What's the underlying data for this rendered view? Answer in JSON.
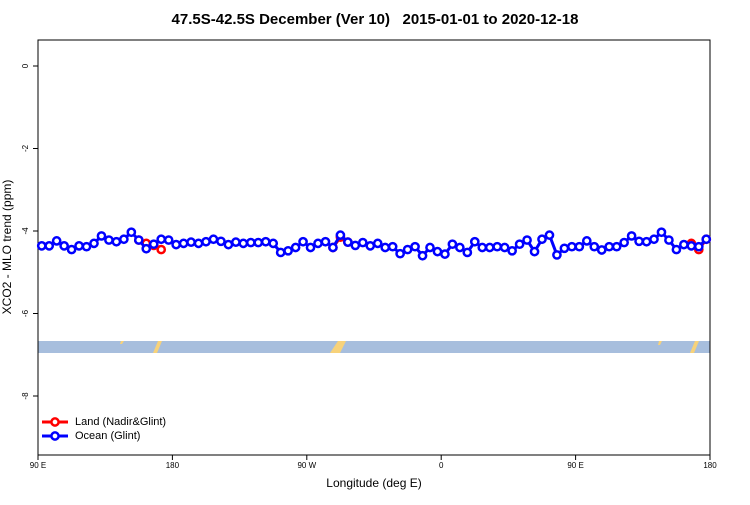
{
  "chart_data": {
    "type": "line",
    "title": "47.5S-42.5S December (Ver 10)   2015-01-01 to 2020-12-18",
    "xlabel": "Longitude (deg E)",
    "ylabel": "XCO2 - MLO trend (ppm)",
    "x": [
      92.5,
      97.5,
      102.5,
      107.5,
      112.5,
      117.5,
      122.5,
      127.5,
      132.5,
      137.5,
      142.5,
      147.5,
      152.5,
      157.5,
      162.5,
      167.5,
      172.5,
      177.5,
      182.5,
      187.5,
      192.5,
      197.5,
      202.5,
      207.5,
      212.5,
      217.5,
      222.5,
      227.5,
      232.5,
      237.5,
      242.5,
      247.5,
      252.5,
      257.5,
      262.5,
      267.5,
      272.5,
      277.5,
      282.5,
      287.5,
      292.5,
      297.5,
      302.5,
      307.5,
      312.5,
      317.5,
      322.5,
      327.5,
      332.5,
      337.5,
      342.5,
      347.5,
      352.5,
      357.5,
      362.5,
      367.5,
      372.5,
      377.5,
      382.5,
      387.5,
      392.5,
      397.5,
      402.5,
      407.5,
      412.5,
      417.5,
      422.5,
      427.5,
      432.5,
      437.5,
      442.5,
      447.5,
      452.5,
      457.5,
      462.5,
      467.5,
      472.5,
      477.5,
      482.5,
      487.5,
      492.5,
      497.5,
      502.5,
      507.5,
      512.5,
      517.5,
      522.5,
      527.5,
      532.5,
      537.5
    ],
    "series": [
      {
        "name": "Land (Nadir&Glint)",
        "color": "#ff0000",
        "values": [
          null,
          null,
          null,
          null,
          null,
          null,
          null,
          null,
          null,
          null,
          null,
          null,
          null,
          -4.22,
          -4.3,
          -4.35,
          -4.45,
          null,
          null,
          null,
          null,
          null,
          null,
          null,
          null,
          null,
          null,
          null,
          null,
          null,
          null,
          null,
          null,
          null,
          null,
          null,
          null,
          null,
          null,
          -4.4,
          -4.15,
          -4.27,
          null,
          null,
          null,
          null,
          null,
          null,
          null,
          null,
          null,
          null,
          null,
          null,
          null,
          null,
          null,
          null,
          null,
          null,
          null,
          null,
          null,
          null,
          null,
          null,
          null,
          null,
          null,
          null,
          null,
          null,
          null,
          null,
          null,
          null,
          null,
          null,
          null,
          null,
          null,
          null,
          null,
          null,
          null,
          null,
          null,
          -4.3,
          -4.45,
          -4.2
        ]
      },
      {
        "name": "Ocean (Glint)",
        "color": "#0000ff",
        "values": [
          -4.36,
          -4.36,
          -4.24,
          -4.36,
          -4.45,
          -4.36,
          -4.38,
          -4.3,
          -4.12,
          -4.22,
          -4.26,
          -4.2,
          -4.03,
          -4.22,
          -4.43,
          -4.32,
          -4.2,
          -4.22,
          -4.33,
          -4.3,
          -4.27,
          -4.3,
          -4.26,
          -4.2,
          -4.25,
          -4.33,
          -4.27,
          -4.3,
          -4.28,
          -4.28,
          -4.26,
          -4.3,
          -4.52,
          -4.48,
          -4.4,
          -4.26,
          -4.4,
          -4.3,
          -4.26,
          -4.4,
          -4.1,
          -4.27,
          -4.35,
          -4.28,
          -4.36,
          -4.3,
          -4.4,
          -4.38,
          -4.55,
          -4.45,
          -4.38,
          -4.6,
          -4.4,
          -4.5,
          -4.56,
          -4.32,
          -4.4,
          -4.52,
          -4.26,
          -4.4,
          -4.4,
          -4.38,
          -4.4,
          -4.48,
          -4.32,
          -4.22,
          -4.5,
          -4.2,
          -4.1,
          -4.58,
          -4.42,
          -4.38,
          -4.38,
          -4.24,
          -4.38,
          -4.46,
          -4.38,
          -4.38,
          -4.28,
          -4.12,
          -4.25,
          -4.26,
          -4.2,
          -4.03,
          -4.22,
          -4.45,
          -4.33,
          -4.36,
          -4.38,
          -4.2
        ]
      }
    ],
    "xlim": [
      90,
      540
    ],
    "xticks": [
      {
        "value": 90,
        "label": "90 E"
      },
      180,
      {
        "value": 270,
        "label": "90 W"
      },
      {
        "value": 360,
        "label": "0"
      },
      {
        "value": 450,
        "label": "90 E"
      },
      {
        "value": 540,
        "label": "180"
      }
    ],
    "ylim": [
      -9.43,
      0.63
    ],
    "yticks": [
      0,
      -2,
      -4,
      -6,
      -8
    ],
    "legend": "bottom-left"
  }
}
